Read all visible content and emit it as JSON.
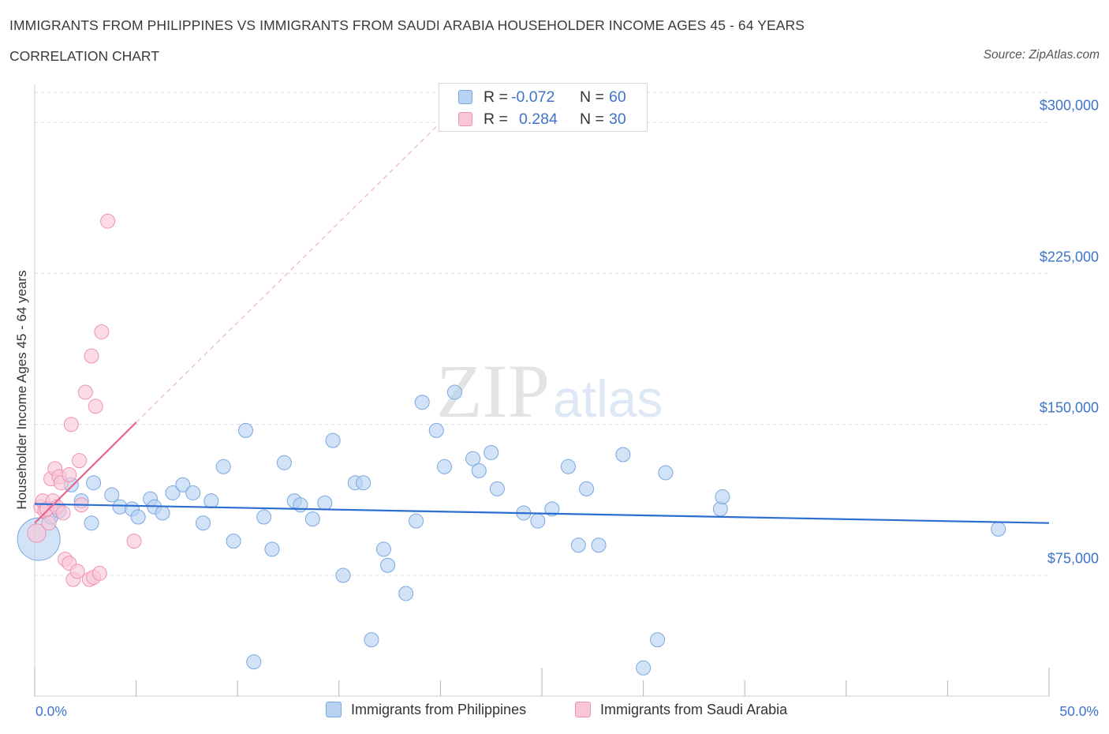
{
  "header": {
    "title": "IMMIGRANTS FROM PHILIPPINES VS IMMIGRANTS FROM SAUDI ARABIA HOUSEHOLDER INCOME AGES 45 - 64 YEARS",
    "subtitle": "CORRELATION CHART",
    "source": "Source: ZipAtlas.com"
  },
  "watermark": {
    "zip": "ZIP",
    "atlas": "atlas"
  },
  "colors": {
    "blue_fill": "#b7d2f3",
    "blue_stroke": "#7aa7e0",
    "blue_line": "#2c6fd1",
    "pink_fill": "#f8c6d6",
    "pink_stroke": "#ee93b2",
    "pink_line": "#e8658f",
    "grid": "#dcdcdc",
    "axis_text": "#3d73c9"
  },
  "legend_top": {
    "rows": [
      {
        "r_label": "R =",
        "r_value": "-0.072",
        "n_label": "N =",
        "n_value": "60"
      },
      {
        "r_label": "R =",
        "r_value": "0.284",
        "n_label": "N =",
        "n_value": "30"
      }
    ]
  },
  "legend_bottom": {
    "items": [
      {
        "label": "Immigrants from Philippines"
      },
      {
        "label": "Immigrants from Saudi Arabia"
      }
    ]
  },
  "chart_data": {
    "type": "scatter",
    "title": "IMMIGRANTS FROM PHILIPPINES VS IMMIGRANTS FROM SAUDI ARABIA HOUSEHOLDER INCOME AGES 45 - 64 YEARS",
    "subtitle": "CORRELATION CHART",
    "xlabel": "",
    "ylabel": "Householder Income Ages 45 - 64 years",
    "xlim": [
      0,
      50
    ],
    "ylim": [
      15000,
      315000
    ],
    "x_tick_labels": [
      "0.0%",
      "50.0%"
    ],
    "y_ticks": [
      75000,
      150000,
      225000,
      300000
    ],
    "y_tick_labels": [
      "$75,000",
      "$150,000",
      "$225,000",
      "$300,000"
    ],
    "grid": true,
    "legend_position": "bottom",
    "series": [
      {
        "name": "Immigrants from Philippines",
        "r": -0.072,
        "n": 60,
        "trend": {
          "x": [
            0,
            50
          ],
          "y": [
            110500,
            101000
          ]
        },
        "points": [
          [
            0.2,
            93000,
            3
          ],
          [
            0.8,
            104000,
            1
          ],
          [
            1.2,
            107000,
            1
          ],
          [
            1.8,
            120000,
            1
          ],
          [
            2.3,
            112000,
            1
          ],
          [
            2.8,
            101000,
            1
          ],
          [
            2.9,
            121000,
            1
          ],
          [
            3.8,
            115000,
            1
          ],
          [
            4.2,
            109000,
            1
          ],
          [
            4.8,
            108000,
            1
          ],
          [
            5.1,
            104000,
            1
          ],
          [
            5.7,
            113000,
            1
          ],
          [
            5.9,
            109000,
            1
          ],
          [
            6.3,
            106000,
            1
          ],
          [
            6.8,
            116000,
            1
          ],
          [
            7.3,
            120000,
            1
          ],
          [
            7.8,
            116000,
            1
          ],
          [
            8.3,
            101000,
            1
          ],
          [
            8.7,
            112000,
            1
          ],
          [
            9.3,
            129000,
            1
          ],
          [
            9.8,
            92000,
            1
          ],
          [
            10.4,
            147000,
            1
          ],
          [
            10.8,
            32000,
            1
          ],
          [
            11.3,
            104000,
            1
          ],
          [
            11.7,
            88000,
            1
          ],
          [
            12.3,
            131000,
            1
          ],
          [
            12.8,
            112000,
            1
          ],
          [
            13.1,
            110000,
            1
          ],
          [
            13.7,
            103000,
            1
          ],
          [
            14.3,
            111000,
            1
          ],
          [
            14.7,
            142000,
            1
          ],
          [
            15.2,
            75000,
            1
          ],
          [
            15.8,
            121000,
            1
          ],
          [
            16.2,
            121000,
            1
          ],
          [
            16.6,
            43000,
            1
          ],
          [
            17.2,
            88000,
            1
          ],
          [
            17.4,
            80000,
            1
          ],
          [
            18.3,
            66000,
            1
          ],
          [
            18.8,
            102000,
            1
          ],
          [
            19.1,
            161000,
            1
          ],
          [
            19.8,
            147000,
            1
          ],
          [
            20.2,
            129000,
            1
          ],
          [
            20.7,
            166000,
            1
          ],
          [
            21.6,
            133000,
            1
          ],
          [
            21.9,
            127000,
            1
          ],
          [
            22.5,
            136000,
            1
          ],
          [
            22.8,
            118000,
            1
          ],
          [
            24.1,
            106000,
            1
          ],
          [
            24.8,
            102000,
            1
          ],
          [
            25.5,
            108000,
            1
          ],
          [
            26.3,
            129000,
            1
          ],
          [
            26.8,
            90000,
            1
          ],
          [
            27.2,
            118000,
            1
          ],
          [
            27.8,
            90000,
            1
          ],
          [
            29.0,
            135000,
            1
          ],
          [
            30.0,
            29000,
            1
          ],
          [
            30.7,
            43000,
            1
          ],
          [
            31.1,
            126000,
            1
          ],
          [
            33.8,
            108000,
            1
          ],
          [
            33.9,
            114000,
            1
          ],
          [
            47.5,
            98000,
            1
          ]
        ]
      },
      {
        "name": "Immigrants from Saudi Arabia",
        "r": 0.284,
        "n": 30,
        "trend": {
          "x": [
            0,
            5.0
          ],
          "y": [
            101000,
            151000
          ]
        },
        "trend_extension": {
          "x": [
            5.0,
            20.0
          ],
          "y": [
            151000,
            300000
          ]
        },
        "points": [
          [
            0.1,
            96000,
            1.3
          ],
          [
            0.3,
            109000,
            1
          ],
          [
            0.4,
            112000,
            1
          ],
          [
            0.5,
            107000,
            1
          ],
          [
            0.6,
            108000,
            1
          ],
          [
            0.7,
            101000,
            1
          ],
          [
            0.8,
            123000,
            1
          ],
          [
            0.9,
            112000,
            1
          ],
          [
            1.0,
            128000,
            1
          ],
          [
            1.1,
            109000,
            1
          ],
          [
            1.2,
            124000,
            1
          ],
          [
            1.3,
            121000,
            1
          ],
          [
            1.4,
            106000,
            1
          ],
          [
            1.5,
            83000,
            1
          ],
          [
            1.7,
            81000,
            1
          ],
          [
            1.7,
            125000,
            1
          ],
          [
            1.8,
            150000,
            1
          ],
          [
            1.9,
            73000,
            1
          ],
          [
            2.1,
            77000,
            1
          ],
          [
            2.2,
            132000,
            1
          ],
          [
            2.3,
            110000,
            1
          ],
          [
            2.5,
            166000,
            1
          ],
          [
            2.7,
            73000,
            1
          ],
          [
            2.8,
            184000,
            1
          ],
          [
            2.9,
            74000,
            1
          ],
          [
            3.0,
            159000,
            1
          ],
          [
            3.2,
            76000,
            1
          ],
          [
            3.3,
            196000,
            1
          ],
          [
            3.6,
            251000,
            1
          ],
          [
            4.9,
            92000,
            1
          ]
        ]
      }
    ]
  }
}
